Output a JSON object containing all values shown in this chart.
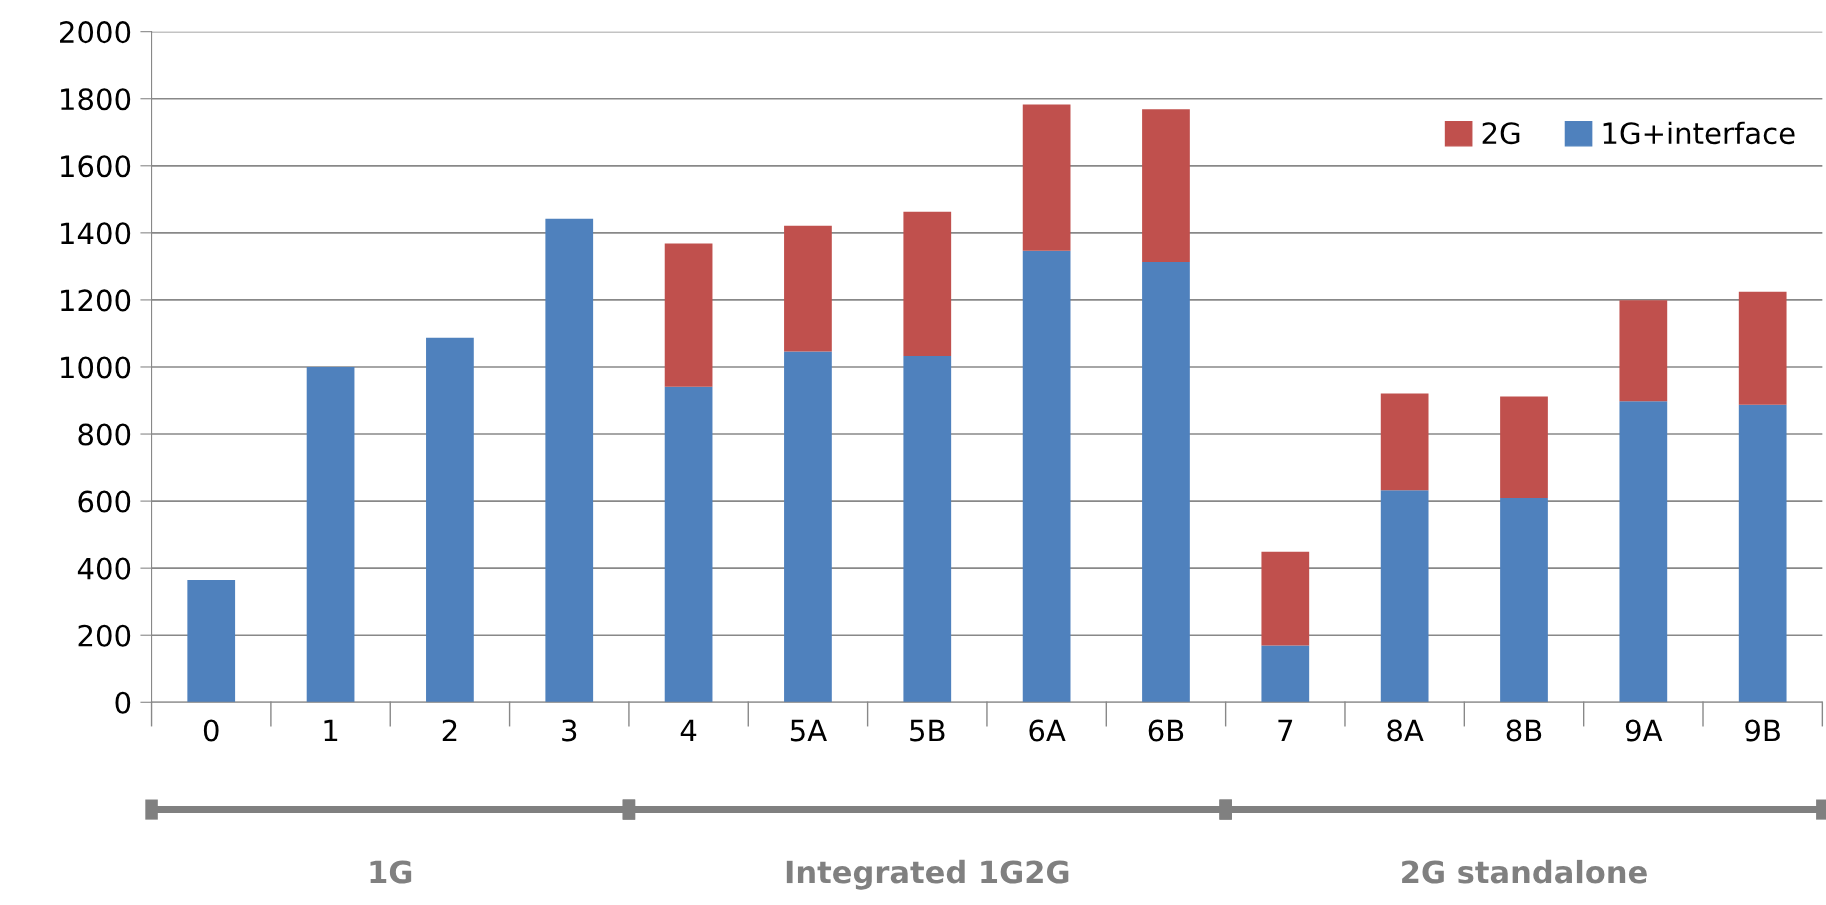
{
  "chart_data": {
    "type": "bar",
    "stacked": true,
    "categories": [
      "0",
      "1",
      "2",
      "3",
      "4",
      "5A",
      "5B",
      "6A",
      "6B",
      "7",
      "8A",
      "8B",
      "9A",
      "9B"
    ],
    "series": [
      {
        "name": "1G+interface",
        "color": "#4f81bd",
        "values": [
          365,
          1000,
          1087,
          1442,
          941,
          1046,
          1033,
          1347,
          1313,
          169,
          632,
          609,
          898,
          887
        ]
      },
      {
        "name": "2G",
        "color": "#c0504d",
        "values": [
          null,
          null,
          null,
          null,
          427,
          375,
          430,
          436,
          456,
          280,
          289,
          303,
          301,
          337
        ]
      }
    ],
    "ylim": [
      0,
      2000
    ],
    "yticks": [
      0,
      200,
      400,
      600,
      800,
      1000,
      1200,
      1400,
      1600,
      1800,
      2000
    ],
    "grid": "y",
    "legend": "top right",
    "annotations": [
      "1G",
      "Integrated 1G2G",
      "2G standalone"
    ]
  }
}
